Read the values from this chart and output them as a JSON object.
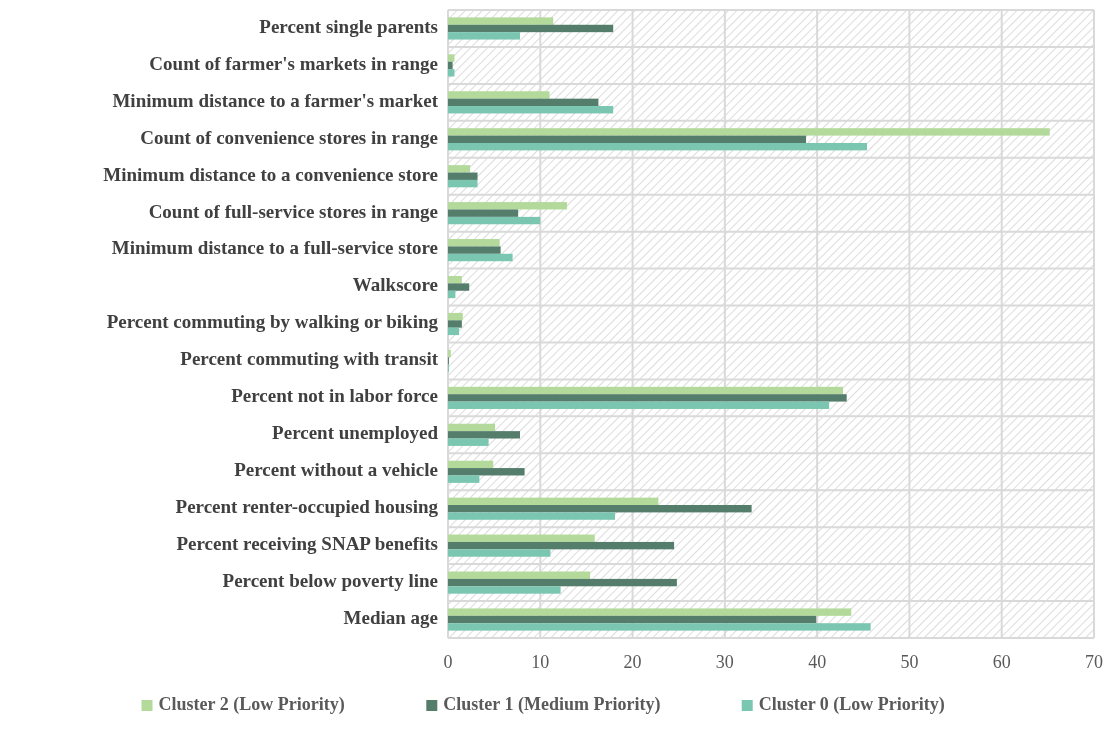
{
  "chart_data": {
    "type": "bar",
    "orientation": "horizontal",
    "categories": [
      "Percent single parents",
      "Count of farmer's markets in range",
      "Minimum distance to a farmer's market",
      "Count of convenience stores in range",
      "Minimum distance to a convenience store",
      "Count of full-service stores in range",
      "Minimum distance to a full-service store",
      "Walkscore",
      "Percent commuting by walking or biking",
      "Percent commuting with transit",
      "Percent not in labor force",
      "Percent unemployed",
      "Percent without a vehicle",
      "Percent renter-occupied housing",
      "Percent receiving SNAP benefits",
      "Percent below poverty line",
      "Median age"
    ],
    "series": [
      {
        "name": "Cluster 2 (Low Priority)",
        "color": "#b3d99b",
        "values": [
          11.4,
          0.7,
          11.0,
          65.2,
          2.4,
          12.9,
          5.6,
          1.5,
          1.6,
          0.3,
          42.8,
          5.1,
          4.9,
          22.8,
          15.9,
          15.4,
          43.7
        ]
      },
      {
        "name": "Cluster 1 (Medium Priority)",
        "color": "#547d6c",
        "values": [
          17.9,
          0.5,
          16.3,
          38.8,
          3.2,
          7.6,
          5.7,
          2.3,
          1.5,
          0.1,
          43.2,
          7.8,
          8.3,
          32.9,
          24.5,
          24.8,
          39.9
        ]
      },
      {
        "name": "Cluster 0 (Low Priority)",
        "color": "#7ac6b0",
        "values": [
          7.8,
          0.7,
          17.9,
          45.4,
          3.2,
          10.0,
          7.0,
          0.8,
          1.2,
          0.1,
          41.3,
          4.4,
          3.4,
          18.1,
          11.1,
          12.2,
          45.8
        ]
      }
    ],
    "xlim": [
      0,
      70
    ],
    "xticks": [
      0,
      10,
      20,
      30,
      40,
      50,
      60,
      70
    ],
    "grid": true,
    "legend": "bottom"
  }
}
